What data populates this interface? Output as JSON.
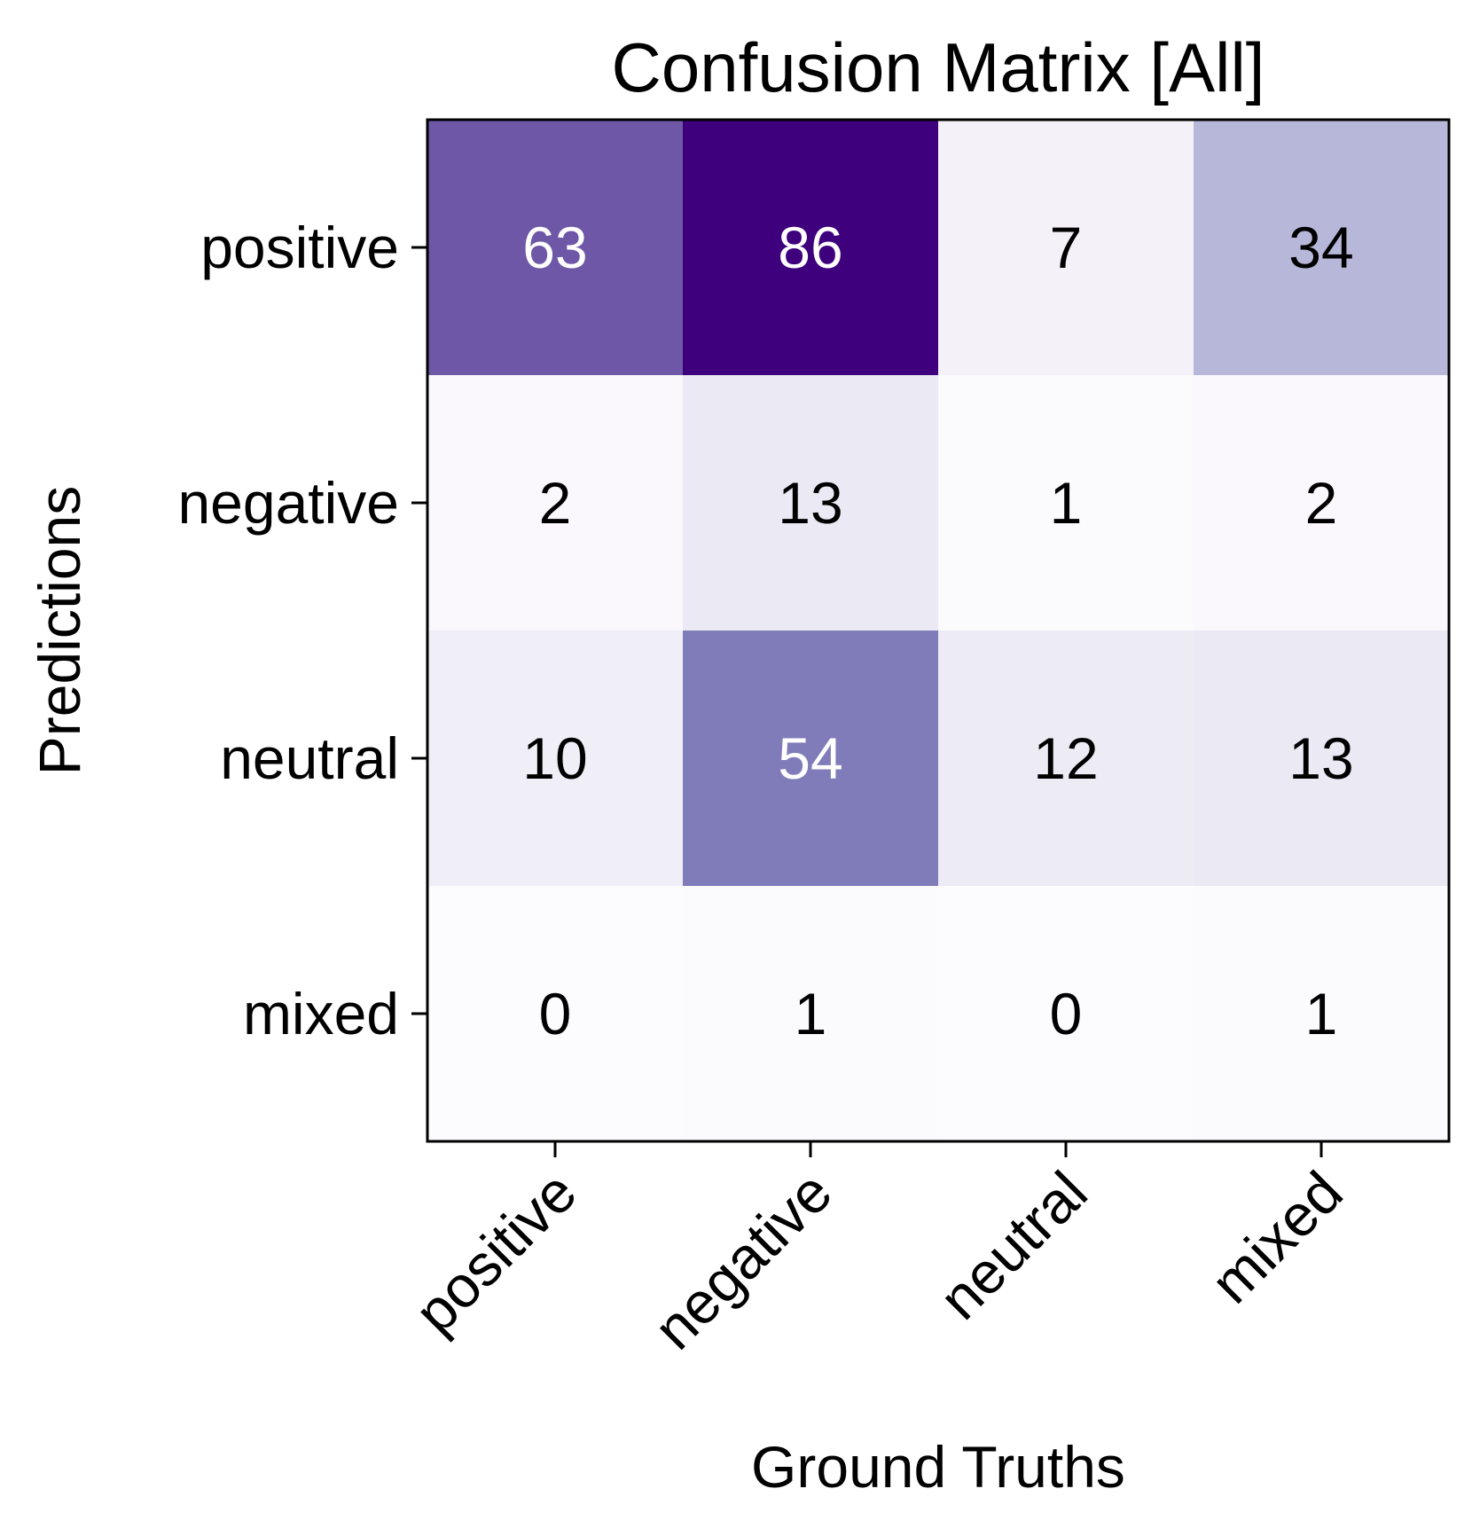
{
  "chart_data": {
    "type": "heatmap",
    "title": "Confusion Matrix [All]",
    "xlabel": "Ground Truths",
    "ylabel": "Predictions",
    "x_categories": [
      "positive",
      "negative",
      "neutral",
      "mixed"
    ],
    "y_categories": [
      "positive",
      "negative",
      "neutral",
      "mixed"
    ],
    "matrix": [
      [
        63,
        86,
        7,
        34
      ],
      [
        2,
        13,
        1,
        2
      ],
      [
        10,
        54,
        12,
        13
      ],
      [
        0,
        1,
        0,
        1
      ]
    ],
    "colormap": "Purples",
    "vmin": 0,
    "vmax": 86,
    "grid": false,
    "colorbar": false
  }
}
